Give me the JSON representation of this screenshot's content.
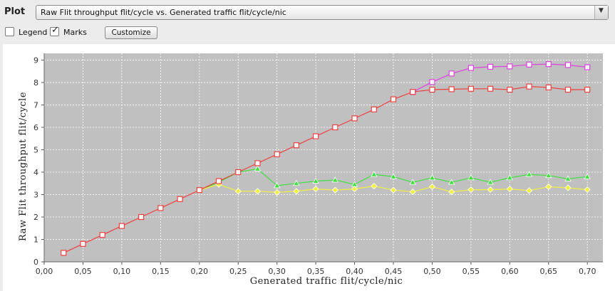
{
  "toolbar": {
    "plot_label": "Plot",
    "selected_plot": "Raw Flit throughput flit/cycle vs. Generated traffic flit/cycle/nic",
    "dropdown_arrow": "▼",
    "legend_label": "Legend",
    "legend_checked": false,
    "marks_label": "Marks",
    "marks_checked": true,
    "check_glyph": "✓",
    "customize_label": "Customize"
  },
  "chart_data": {
    "type": "line",
    "title": "",
    "xlabel": "Generated traffic flit/cycle/nic",
    "ylabel": "Raw Flit throughput flit/cycle",
    "xlim": [
      0,
      0.72
    ],
    "ylim": [
      0,
      9.3
    ],
    "grid": true,
    "xticks": [
      "0,00",
      "0,05",
      "0,10",
      "0,15",
      "0,20",
      "0,25",
      "0,30",
      "0,35",
      "0,40",
      "0,45",
      "0,50",
      "0,55",
      "0,60",
      "0,65",
      "0,70"
    ],
    "yticks": [
      "0",
      "1",
      "2",
      "3",
      "4",
      "5",
      "6",
      "7",
      "8",
      "9"
    ],
    "series": [
      {
        "name": "magenta",
        "color": "#e040e0",
        "marker": "square",
        "x": [
          0.475,
          0.5,
          0.525,
          0.55,
          0.575,
          0.6,
          0.625,
          0.65,
          0.675,
          0.7
        ],
        "y": [
          7.58,
          8.02,
          8.4,
          8.65,
          8.7,
          8.72,
          8.8,
          8.82,
          8.78,
          8.68
        ]
      },
      {
        "name": "green",
        "color": "#40e040",
        "marker": "triangle",
        "x": [
          0.2,
          0.225,
          0.25,
          0.275,
          0.3,
          0.325,
          0.35,
          0.375,
          0.4,
          0.425,
          0.45,
          0.475,
          0.5,
          0.525,
          0.55,
          0.575,
          0.6,
          0.625,
          0.65,
          0.675,
          0.7
        ],
        "y": [
          3.2,
          3.55,
          4.0,
          4.15,
          3.4,
          3.5,
          3.6,
          3.65,
          3.45,
          3.9,
          3.8,
          3.55,
          3.75,
          3.55,
          3.75,
          3.55,
          3.75,
          3.9,
          3.85,
          3.7,
          3.8
        ]
      },
      {
        "name": "yellow",
        "color": "#f0f040",
        "marker": "diamond",
        "x": [
          0.2,
          0.225,
          0.25,
          0.275,
          0.3,
          0.325,
          0.35,
          0.375,
          0.4,
          0.425,
          0.45,
          0.475,
          0.5,
          0.525,
          0.55,
          0.575,
          0.6,
          0.625,
          0.65,
          0.675,
          0.7
        ],
        "y": [
          3.2,
          3.45,
          3.15,
          3.15,
          3.1,
          3.15,
          3.25,
          3.2,
          3.25,
          3.38,
          3.2,
          3.12,
          3.35,
          3.12,
          3.22,
          3.22,
          3.25,
          3.18,
          3.35,
          3.3,
          3.22
        ]
      },
      {
        "name": "red",
        "color": "#f04040",
        "marker": "square",
        "x": [
          0.025,
          0.05,
          0.075,
          0.1,
          0.125,
          0.15,
          0.175,
          0.2,
          0.225,
          0.25,
          0.275,
          0.3,
          0.325,
          0.35,
          0.375,
          0.4,
          0.425,
          0.45,
          0.475,
          0.5,
          0.525,
          0.55,
          0.575,
          0.6,
          0.625,
          0.65,
          0.675,
          0.7
        ],
        "y": [
          0.4,
          0.8,
          1.2,
          1.6,
          2.0,
          2.4,
          2.8,
          3.2,
          3.6,
          4.0,
          4.4,
          4.8,
          5.2,
          5.6,
          6.0,
          6.4,
          6.8,
          7.25,
          7.58,
          7.68,
          7.7,
          7.72,
          7.72,
          7.68,
          7.82,
          7.78,
          7.68,
          7.68
        ]
      }
    ]
  }
}
